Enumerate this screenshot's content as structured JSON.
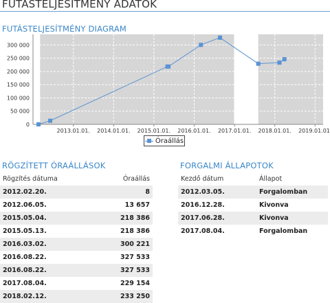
{
  "page": {
    "title": "FUTÁSTELJESÍTMÉNY ADATOK"
  },
  "diagram": {
    "title": "FUTÁSTELJESÍTMÉNY DIAGRAM"
  },
  "chart_data": {
    "type": "line",
    "series": [
      {
        "name": "Óraállás",
        "color": "#5b93d3",
        "points": [
          [
            "2012.02.20.",
            8
          ],
          [
            "2012.06.05.",
            13657
          ],
          [
            "2015.05.04.",
            218386
          ],
          [
            "2015.05.13.",
            218386
          ],
          [
            "2016.03.02.",
            300221
          ],
          [
            "2016.08.22.",
            327533
          ],
          [
            "2016.08.22.",
            327533
          ],
          [
            "2017.08.04.",
            229154
          ],
          [
            "2018.02.12.",
            233250
          ],
          [
            "2018.03.29.",
            246000
          ]
        ]
      }
    ],
    "x_ticks": [
      "2013.01.01.",
      "2014.01.01.",
      "2015.01.01.",
      "2016.01.01.",
      "2017.01.01.",
      "2018.01.01.",
      "2019.01.01."
    ],
    "y_ticks": [
      "0",
      "50 000",
      "100 000",
      "150 000",
      "200 000",
      "250 000",
      "300 000"
    ],
    "ylim": [
      0,
      340000
    ],
    "xlim": [
      "2012.01.01.",
      "2019.03.15."
    ],
    "shaded_periods": [
      {
        "from": "2012.03.05.",
        "to": "2016.12.28.",
        "status": "Forgalomban"
      },
      {
        "from": "2017.08.04.",
        "to": "2019.03.15.",
        "status": "Forgalomban"
      }
    ],
    "legend": "bottom-center"
  },
  "readings": {
    "title": "RÖGZÍTETT ÓRAÁLLÁSOK",
    "headers": [
      "Rögzítés dátuma",
      "Óraállás"
    ],
    "rows": [
      [
        "2012.02.20.",
        "8"
      ],
      [
        "2012.06.05.",
        "13 657"
      ],
      [
        "2015.05.04.",
        "218 386"
      ],
      [
        "2015.05.13.",
        "218 386"
      ],
      [
        "2016.03.02.",
        "300 221"
      ],
      [
        "2016.08.22.",
        "327 533"
      ],
      [
        "2016.08.22.",
        "327 533"
      ],
      [
        "2017.08.04.",
        "229 154"
      ],
      [
        "2018.02.12.",
        "233 250"
      ]
    ]
  },
  "status": {
    "title": "FORGALMI ÁLLAPOTOK",
    "headers": [
      "Kezdő dátum",
      "Állapot"
    ],
    "rows": [
      [
        "2012.03.05.",
        "Forgalomban"
      ],
      [
        "2016.12.28.",
        "Kivonva"
      ],
      [
        "2017.06.28.",
        "Kivonva"
      ],
      [
        "2017.08.04.",
        "Forgalomban"
      ]
    ]
  }
}
